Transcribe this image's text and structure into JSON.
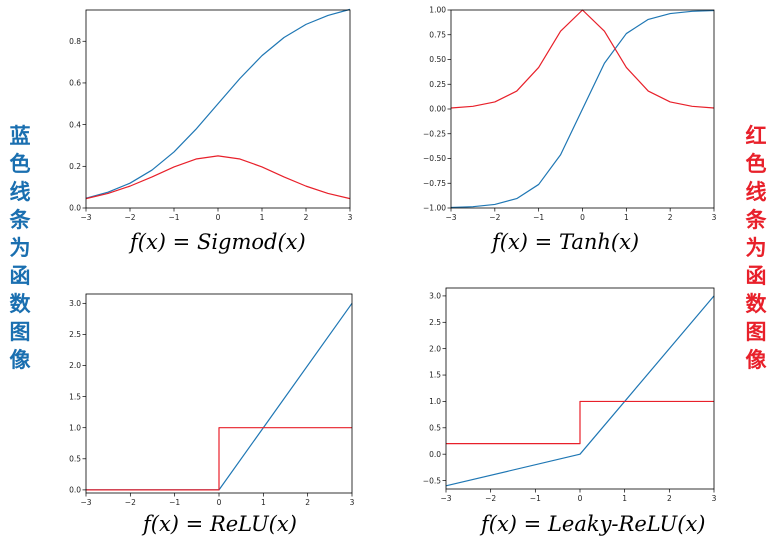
{
  "left_label": "蓝色线条为函数图像",
  "right_label": "红色线条为函数图像",
  "colors": {
    "blue": "#1f77b4",
    "red": "#e8202a",
    "left_label": "#1a6fb0",
    "right_label": "#e8202a"
  },
  "chart_data": [
    {
      "type": "line",
      "caption": "f(x) = Sigmod(x)",
      "xlim": [
        -3,
        3
      ],
      "ylim": [
        0,
        0.95
      ],
      "xticks": [
        -3,
        -2,
        -1,
        0,
        1,
        2,
        3
      ],
      "yticks": [
        0.0,
        0.2,
        0.4,
        0.6,
        0.8
      ],
      "ytick_labels": [
        "0.0",
        "0.2",
        "0.4",
        "0.6",
        "0.8"
      ],
      "series": [
        {
          "color": "blue",
          "x": [
            -3,
            -2.5,
            -2,
            -1.5,
            -1,
            -0.5,
            0,
            0.5,
            1,
            1.5,
            2,
            2.5,
            3
          ],
          "y": [
            0.047,
            0.076,
            0.119,
            0.182,
            0.269,
            0.378,
            0.5,
            0.622,
            0.731,
            0.818,
            0.881,
            0.924,
            0.953
          ]
        },
        {
          "color": "red",
          "x": [
            -3,
            -2.5,
            -2,
            -1.5,
            -1,
            -0.5,
            0,
            0.5,
            1,
            1.5,
            2,
            2.5,
            3
          ],
          "y": [
            0.045,
            0.07,
            0.105,
            0.149,
            0.197,
            0.235,
            0.25,
            0.235,
            0.197,
            0.149,
            0.105,
            0.07,
            0.045
          ]
        }
      ]
    },
    {
      "type": "line",
      "caption": "f(x) = Tanh(x)",
      "xlim": [
        -3,
        3
      ],
      "ylim": [
        -1.0,
        1.0
      ],
      "xticks": [
        -3,
        -2,
        -1,
        0,
        1,
        2,
        3
      ],
      "yticks": [
        -1.0,
        -0.75,
        -0.5,
        -0.25,
        0.0,
        0.25,
        0.5,
        0.75,
        1.0
      ],
      "ytick_labels": [
        "−1.00",
        "−0.75",
        "−0.50",
        "−0.25",
        "0.00",
        "0.25",
        "0.50",
        "0.75",
        "1.00"
      ],
      "series": [
        {
          "color": "blue",
          "x": [
            -3,
            -2.5,
            -2,
            -1.5,
            -1,
            -0.5,
            0,
            0.5,
            1,
            1.5,
            2,
            2.5,
            3
          ],
          "y": [
            -0.995,
            -0.987,
            -0.964,
            -0.905,
            -0.762,
            -0.462,
            0,
            0.462,
            0.762,
            0.905,
            0.964,
            0.987,
            0.995
          ]
        },
        {
          "color": "red",
          "x": [
            -3,
            -2.5,
            -2,
            -1.5,
            -1,
            -0.5,
            0,
            0.5,
            1,
            1.5,
            2,
            2.5,
            3
          ],
          "y": [
            0.01,
            0.027,
            0.071,
            0.181,
            0.42,
            0.786,
            1.0,
            0.786,
            0.42,
            0.181,
            0.071,
            0.027,
            0.01
          ]
        }
      ]
    },
    {
      "type": "line",
      "caption": "f(x) = ReLU(x)",
      "xlim": [
        -3,
        3
      ],
      "ylim": [
        -0.05,
        3.15
      ],
      "xticks": [
        -3,
        -2,
        -1,
        0,
        1,
        2,
        3
      ],
      "yticks": [
        0.0,
        0.5,
        1.0,
        1.5,
        2.0,
        2.5,
        3.0
      ],
      "ytick_labels": [
        "0.0",
        "0.5",
        "1.0",
        "1.5",
        "2.0",
        "2.5",
        "3.0"
      ],
      "series": [
        {
          "color": "blue",
          "x": [
            -3,
            0,
            3
          ],
          "y": [
            0,
            0,
            3
          ]
        },
        {
          "color": "red",
          "x": [
            -3,
            0,
            0,
            3
          ],
          "y": [
            0,
            0,
            1,
            1
          ]
        }
      ]
    },
    {
      "type": "line",
      "caption": "f(x) = Leaky-ReLU(x)",
      "xlim": [
        -3,
        3
      ],
      "ylim": [
        -0.66,
        3.15
      ],
      "xticks": [
        -3,
        -2,
        -1,
        0,
        1,
        2,
        3
      ],
      "yticks": [
        -0.5,
        0.0,
        0.5,
        1.0,
        1.5,
        2.0,
        2.5,
        3.0
      ],
      "ytick_labels": [
        "−0.5",
        "0.0",
        "0.5",
        "1.0",
        "1.5",
        "2.0",
        "2.5",
        "3.0"
      ],
      "series": [
        {
          "color": "blue",
          "x": [
            -3,
            0,
            3
          ],
          "y": [
            -0.6,
            0,
            3
          ]
        },
        {
          "color": "red",
          "x": [
            -3,
            0,
            0,
            3
          ],
          "y": [
            0.2,
            0.2,
            1,
            1
          ]
        }
      ]
    }
  ]
}
